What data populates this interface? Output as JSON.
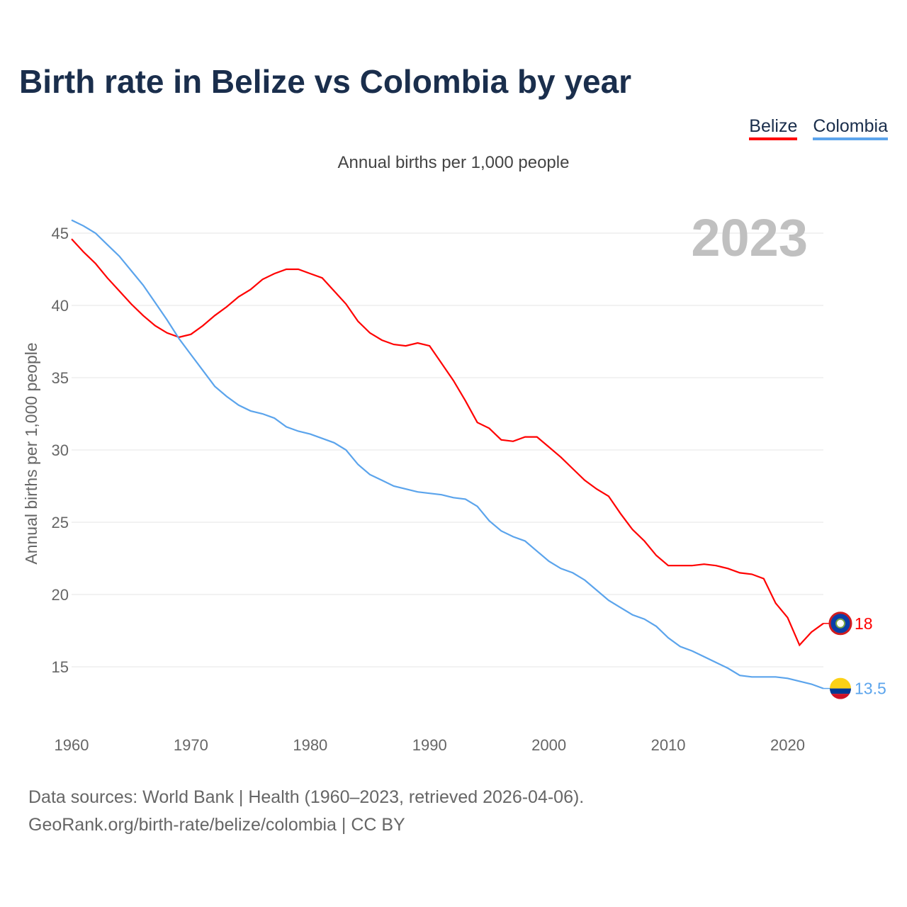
{
  "title": "Birth rate in Belize vs Colombia by year",
  "legend": [
    {
      "name": "Belize",
      "color": "#ff0000"
    },
    {
      "name": "Colombia",
      "color": "#5ba4ec"
    }
  ],
  "subtitle": "Annual births per 1,000 people",
  "year_label": "2023",
  "footer": {
    "line1": "Data sources: World Bank | Health (1960–2023, retrieved 2026-04-06).",
    "line2": "GeoRank.org/birth-rate/belize/colombia | CC BY"
  },
  "chart_data": {
    "type": "line",
    "title": "Birth rate in Belize vs Colombia by year",
    "xlabel": "",
    "ylabel": "Annual births per 1,000 people",
    "xlim": [
      1960,
      2023
    ],
    "ylim": [
      11.5,
      46.5
    ],
    "xticks": [
      1960,
      1970,
      1980,
      1990,
      2000,
      2010,
      2020
    ],
    "yticks": [
      15,
      20,
      25,
      30,
      35,
      40,
      45
    ],
    "grid": true,
    "legend_position": "top-right",
    "x": [
      1960,
      1961,
      1962,
      1963,
      1964,
      1965,
      1966,
      1967,
      1968,
      1969,
      1970,
      1971,
      1972,
      1973,
      1974,
      1975,
      1976,
      1977,
      1978,
      1979,
      1980,
      1981,
      1982,
      1983,
      1984,
      1985,
      1986,
      1987,
      1988,
      1989,
      1990,
      1991,
      1992,
      1993,
      1994,
      1995,
      1996,
      1997,
      1998,
      1999,
      2000,
      2001,
      2002,
      2003,
      2004,
      2005,
      2006,
      2007,
      2008,
      2009,
      2010,
      2011,
      2012,
      2013,
      2014,
      2015,
      2016,
      2017,
      2018,
      2019,
      2020,
      2021,
      2022,
      2023
    ],
    "series": [
      {
        "name": "Belize",
        "color": "#ff0000",
        "end_label": "18",
        "values": [
          44.6,
          43.7,
          42.9,
          41.9,
          41.0,
          40.1,
          39.3,
          38.6,
          38.1,
          37.8,
          38.0,
          38.6,
          39.3,
          39.9,
          40.6,
          41.1,
          41.8,
          42.2,
          42.5,
          42.5,
          42.2,
          41.9,
          41.0,
          40.1,
          38.9,
          38.1,
          37.6,
          37.3,
          37.2,
          37.4,
          37.2,
          36.0,
          34.8,
          33.4,
          31.9,
          31.5,
          30.7,
          30.6,
          30.9,
          30.9,
          30.2,
          29.5,
          28.7,
          27.9,
          27.3,
          26.8,
          25.6,
          24.5,
          23.7,
          22.7,
          22.0,
          22.0,
          22.0,
          22.1,
          22.0,
          21.8,
          21.5,
          21.4,
          21.1,
          19.4,
          18.4,
          16.5,
          17.4,
          18.0
        ]
      },
      {
        "name": "Colombia",
        "color": "#5ba4ec",
        "end_label": "13.5",
        "values": [
          45.9,
          45.5,
          45.0,
          44.2,
          43.4,
          42.4,
          41.4,
          40.2,
          39.0,
          37.7,
          36.6,
          35.5,
          34.4,
          33.7,
          33.1,
          32.7,
          32.5,
          32.2,
          31.6,
          31.3,
          31.1,
          30.8,
          30.5,
          30.0,
          29.0,
          28.3,
          27.9,
          27.5,
          27.3,
          27.1,
          27.0,
          26.9,
          26.7,
          26.6,
          26.1,
          25.1,
          24.4,
          24.0,
          23.7,
          23.0,
          22.3,
          21.8,
          21.5,
          21.0,
          20.3,
          19.6,
          19.1,
          18.6,
          18.3,
          17.8,
          17.0,
          16.4,
          16.1,
          15.7,
          15.3,
          14.9,
          14.4,
          14.3,
          14.3,
          14.3,
          14.2,
          14.0,
          13.8,
          13.5
        ]
      }
    ]
  }
}
